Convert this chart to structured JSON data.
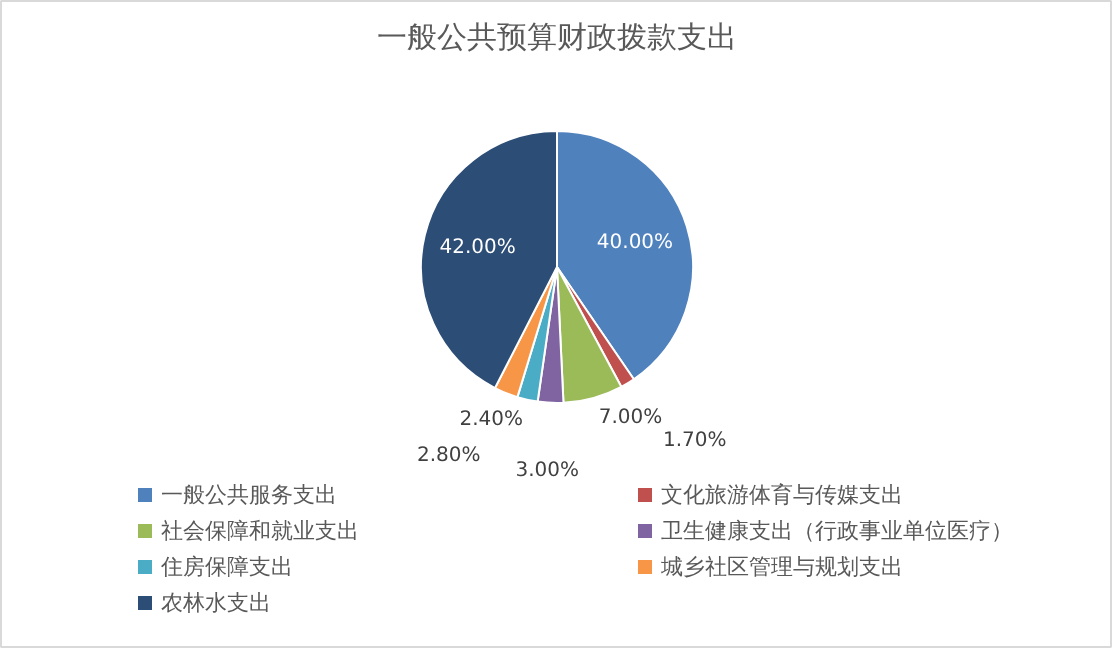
{
  "chart_data": {
    "type": "pie",
    "title": "一般公共预算财政拨款支出",
    "categories": [
      "一般公共服务支出",
      "文化旅游体育与传媒支出",
      "社会保障和就业支出",
      "卫生健康支出（行政事业单位医疗）",
      "住房保障支出",
      "城乡社区管理与规划支出",
      "农林水支出"
    ],
    "values": [
      40.0,
      1.7,
      7.0,
      3.0,
      2.4,
      2.8,
      42.0
    ],
    "colors": [
      "#4f81bd",
      "#c0504d",
      "#9bbb59",
      "#8064a2",
      "#4bacc6",
      "#f79646",
      "#2c4d75"
    ],
    "value_labels": [
      "40.00%",
      "1.70%",
      "7.00%",
      "3.00%",
      "2.40%",
      "2.80%",
      "42.00%"
    ],
    "legend": "bottom"
  }
}
